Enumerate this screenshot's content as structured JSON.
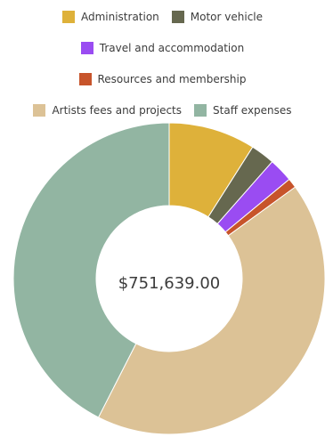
{
  "chart_data": {
    "type": "pie",
    "donut": true,
    "center_label": "$751,639.00",
    "categories": [
      "Administration",
      "Motor vehicle",
      "Travel and accommodation",
      "Resources and membership",
      "Artists fees and projects",
      "Staff expenses"
    ],
    "values": [
      0.09,
      0.025,
      0.025,
      0.01,
      0.425,
      0.425
    ],
    "colors": [
      "#deb13a",
      "#66684f",
      "#9a4cf2",
      "#c7542b",
      "#dcc296",
      "#92b5a2"
    ],
    "legend_position": "top",
    "title": "",
    "value_units": "fraction of total"
  }
}
